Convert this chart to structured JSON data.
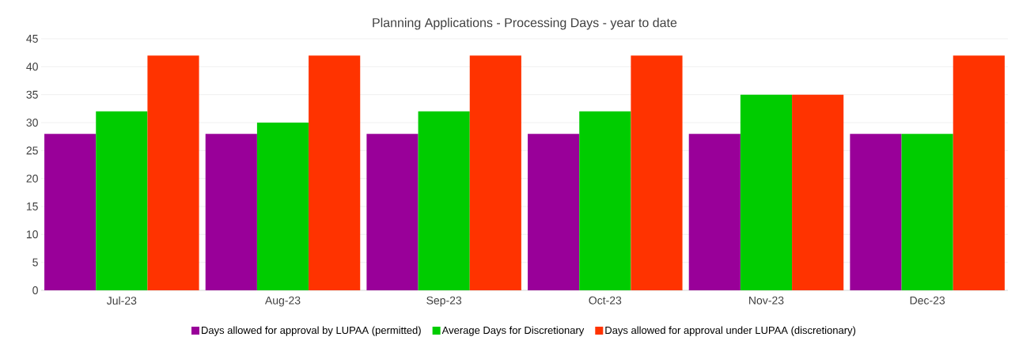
{
  "chart_data": {
    "type": "bar",
    "title": "Planning Applications - Processing Days - year to date",
    "categories": [
      "Jul-23",
      "Aug-23",
      "Sep-23",
      "Oct-23",
      "Nov-23",
      "Dec-23"
    ],
    "series": [
      {
        "name": "Days allowed for approval by LUPAA (permitted)",
        "color": "#990099",
        "values": [
          28,
          28,
          28,
          28,
          28,
          28
        ]
      },
      {
        "name": "Average Days for Discretionary",
        "color": "#00cc00",
        "values": [
          32,
          30,
          32,
          32,
          35,
          28
        ]
      },
      {
        "name": "Days allowed for approval under LUPAA (discretionary)",
        "color": "#ff3300",
        "values": [
          42,
          42,
          42,
          42,
          35,
          42
        ]
      }
    ],
    "ylim": [
      0,
      45
    ],
    "yticks": [
      0,
      5,
      10,
      15,
      20,
      25,
      30,
      35,
      40,
      45
    ],
    "grid": "y",
    "legend": "bottom"
  }
}
